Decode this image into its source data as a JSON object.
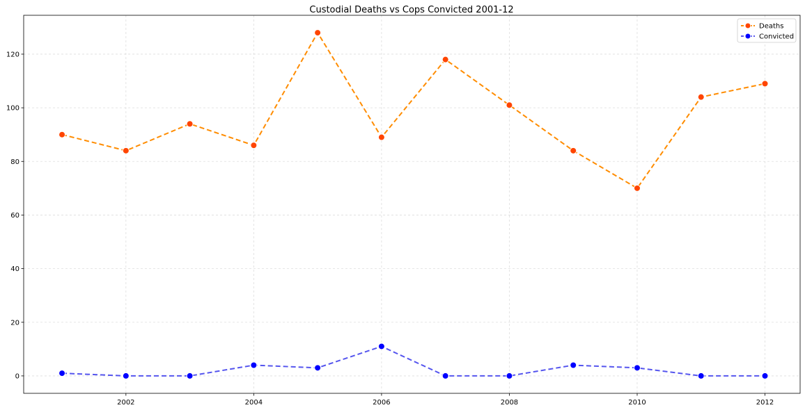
{
  "chart_data": {
    "type": "line",
    "title": "Custodial Deaths vs Cops Convicted 2001-12",
    "xlabel": "",
    "ylabel": "",
    "x": [
      2001,
      2002,
      2003,
      2004,
      2005,
      2006,
      2007,
      2008,
      2009,
      2010,
      2011,
      2012
    ],
    "xlim": [
      2000.4,
      2012.55
    ],
    "ylim": [
      -6.5,
      134.5
    ],
    "xticks": [
      2002,
      2004,
      2006,
      2008,
      2010,
      2012
    ],
    "yticks": [
      0,
      20,
      40,
      60,
      80,
      100,
      120
    ],
    "grid": true,
    "legend_position": "top-right",
    "series": [
      {
        "name": "Deaths",
        "values": [
          90,
          84,
          94,
          86,
          128,
          89,
          118,
          101,
          84,
          70,
          104,
          109
        ],
        "line_color": "#ff8c00",
        "marker_color": "#ff4500",
        "line_style": "dashed"
      },
      {
        "name": "Convicted",
        "values": [
          1,
          0,
          0,
          4,
          3,
          11,
          0,
          0,
          4,
          3,
          0,
          0
        ],
        "line_color": "#5555ee",
        "marker_color": "#0000ff",
        "line_style": "dashed"
      }
    ]
  }
}
